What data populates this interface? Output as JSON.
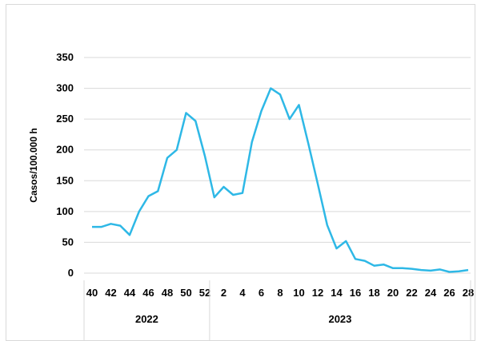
{
  "chart_data": {
    "type": "line",
    "title": "",
    "ylabel": "Casos/100.000 h",
    "xlabel": "",
    "ylim": [
      0,
      350
    ],
    "yticks": [
      0,
      50,
      100,
      150,
      200,
      250,
      300,
      350
    ],
    "grid": true,
    "legend": "none",
    "line_color": "#2eb8e6",
    "gridline_color": "#d9d9d9",
    "x_tick_labels": [
      "40",
      "42",
      "44",
      "46",
      "48",
      "50",
      "52",
      "2",
      "4",
      "6",
      "8",
      "10",
      "12",
      "14",
      "16",
      "18",
      "20",
      "22",
      "24",
      "26",
      "28"
    ],
    "groups": [
      {
        "label": "2022",
        "weeks_count": 13
      },
      {
        "label": "2023",
        "weeks_count": 28
      }
    ],
    "series": [
      {
        "x": [
          "40",
          "41",
          "42",
          "43",
          "44",
          "45",
          "46",
          "47",
          "48",
          "49",
          "50",
          "51",
          "52",
          "1",
          "2",
          "3",
          "4",
          "5",
          "6",
          "7",
          "8",
          "9",
          "10",
          "11",
          "12",
          "13",
          "14",
          "15",
          "16",
          "17",
          "18",
          "19",
          "20",
          "21",
          "22",
          "23",
          "24",
          "25",
          "26",
          "27",
          "28"
        ],
        "values": [
          75,
          75,
          80,
          77,
          62,
          100,
          125,
          133,
          187,
          200,
          260,
          247,
          190,
          123,
          140,
          127,
          130,
          213,
          263,
          300,
          290,
          250,
          273,
          210,
          145,
          78,
          40,
          52,
          23,
          20,
          12,
          14,
          8,
          8,
          7,
          5,
          4,
          6,
          2,
          3,
          5
        ]
      }
    ]
  }
}
